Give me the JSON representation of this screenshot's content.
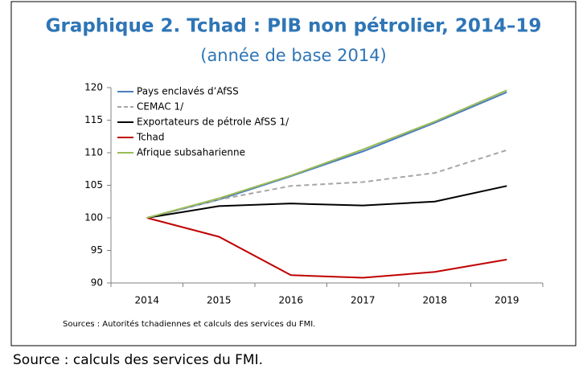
{
  "chart_data": {
    "type": "line",
    "title": "Graphique 2. Tchad : PIB non pétrolier, 2014–19",
    "subtitle": "(année de base 2014)",
    "categories": [
      "2014",
      "2015",
      "2016",
      "2017",
      "2018",
      "2019"
    ],
    "series": [
      {
        "name": "Pays enclavés d’AfSS",
        "color": "#4a7ebb",
        "dash": false,
        "values": [
          100,
          102.8,
          106.4,
          110.2,
          114.6,
          119.3
        ]
      },
      {
        "name": "CEMAC 1/",
        "color": "#a6a6a6",
        "dash": true,
        "values": [
          100,
          102.8,
          104.9,
          105.5,
          106.9,
          110.4
        ]
      },
      {
        "name": "Exportateurs de pétrole AfSS 1/",
        "color": "#000000",
        "dash": false,
        "values": [
          100,
          101.8,
          102.2,
          101.9,
          102.5,
          104.9
        ]
      },
      {
        "name": "Tchad",
        "color": "#c00000",
        "dash": false,
        "values": [
          100,
          97.1,
          91.2,
          90.8,
          91.7,
          93.6
        ]
      },
      {
        "name": "Afrique subsaharienne",
        "color": "#9bbb59",
        "dash": false,
        "values": [
          100,
          103.0,
          106.5,
          110.5,
          114.8,
          119.6
        ]
      }
    ],
    "ylim": [
      90,
      120
    ],
    "yticks": [
      90,
      95,
      100,
      105,
      110,
      115,
      120
    ],
    "legend": "top-left",
    "note": "Sources : Autorités tchadiennes et calculs des services du FMI.",
    "source": "Source : calculs des services du FMI."
  }
}
